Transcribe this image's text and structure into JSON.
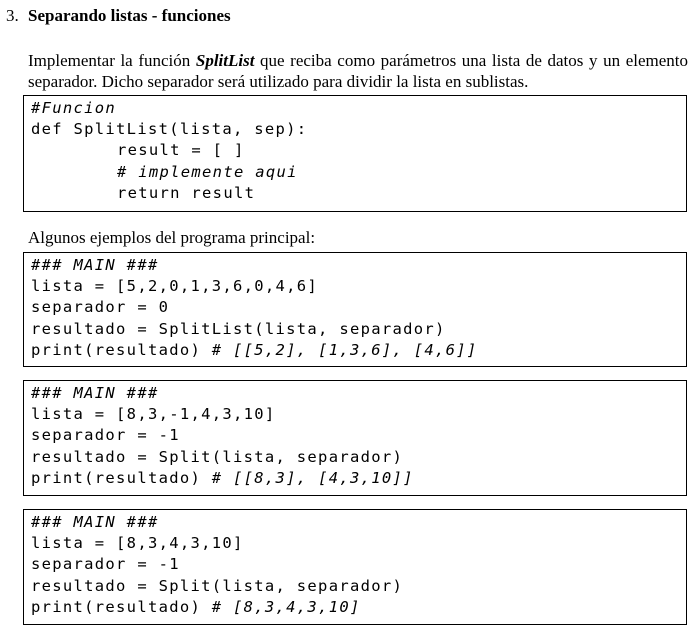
{
  "section": {
    "number": "3.",
    "title": "Separando listas - funciones"
  },
  "intro": {
    "before": "Implementar la función ",
    "function_name": "SplitList",
    "after": " que reciba como parámetros una lista de datos y un elemento separador. Dicho separador será utilizado para dividir la lista en sublistas."
  },
  "definition_code": {
    "comment": "#Funcion",
    "def_line": "def SplitList(lista, sep):",
    "result_line": "result = [ ]",
    "implement_comment": "# implemente aqui",
    "return_line": "return result"
  },
  "examples_label": "Algunos ejemplos del programa principal:",
  "examples": [
    {
      "header": "### MAIN ###",
      "lista": "lista = [5,2,0,1,3,6,0,4,6]",
      "separador": "separador = 0",
      "resultado": "resultado = SplitList(lista, separador)",
      "print_code": "print(resultado) ",
      "print_comment": "# [[5,2], [1,3,6], [4,6]]"
    },
    {
      "header": "### MAIN ###",
      "lista": "lista = [8,3,-1,4,3,10]",
      "separador": "separador = -1",
      "resultado": "resultado = Split(lista, separador)",
      "print_code": "print(resultado) ",
      "print_comment": "# [[8,3], [4,3,10]]"
    },
    {
      "header": "### MAIN ###",
      "lista": "lista = [8,3,4,3,10]",
      "separador": "separador = -1",
      "resultado": "resultado = Split(lista, separador)",
      "print_code": "print(resultado) ",
      "print_comment": "# [8,3,4,3,10]"
    }
  ]
}
